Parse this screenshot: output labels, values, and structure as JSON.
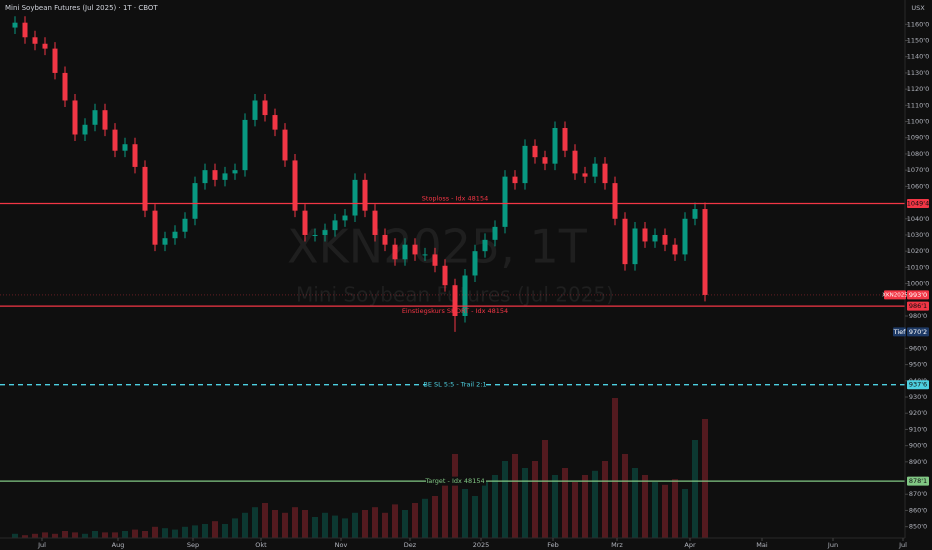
{
  "chart_data": {
    "type": "candlestick",
    "title": "Mini Soybean Futures (Jul 2025) · 1T · CBOT",
    "currency": "USX",
    "watermark": {
      "symbol": "XKN2025, 1T",
      "name": "Mini Soybean Futures (Jul 2025)"
    },
    "up_color": "#089981",
    "down_color": "#f23645",
    "xlim": [
      -1.5,
      89
    ],
    "xticks": [
      {
        "value": 2.7,
        "label": "Jul"
      },
      {
        "value": 10.3,
        "label": "Aug"
      },
      {
        "value": 17.8,
        "label": "Sep"
      },
      {
        "value": 24.6,
        "label": "Okt"
      },
      {
        "value": 32.6,
        "label": "Nov"
      },
      {
        "value": 39.5,
        "label": "Dez"
      },
      {
        "value": 46.6,
        "label": "2025"
      },
      {
        "value": 53.8,
        "label": "Feb"
      },
      {
        "value": 60.2,
        "label": "Mrz"
      },
      {
        "value": 67.5,
        "label": "Apr"
      },
      {
        "value": 74.7,
        "label": "Mai"
      },
      {
        "value": 81.8,
        "label": "Jun"
      },
      {
        "value": 88.8,
        "label": "Jul"
      }
    ],
    "ylim": [
      843,
      1175
    ],
    "yticks": [
      {
        "value": 1160,
        "label": "1160'0"
      },
      {
        "value": 1150,
        "label": "1150'0"
      },
      {
        "value": 1140,
        "label": "1140'0"
      },
      {
        "value": 1130,
        "label": "1130'0"
      },
      {
        "value": 1120,
        "label": "1120'0"
      },
      {
        "value": 1110,
        "label": "1110'0"
      },
      {
        "value": 1100,
        "label": "1100'0"
      },
      {
        "value": 1090,
        "label": "1090'0"
      },
      {
        "value": 1080,
        "label": "1080'0"
      },
      {
        "value": 1070,
        "label": "1070'0"
      },
      {
        "value": 1060,
        "label": "1060'0"
      },
      {
        "value": 1040,
        "label": "1040'0"
      },
      {
        "value": 1030,
        "label": "1030'0"
      },
      {
        "value": 1020,
        "label": "1020'0"
      },
      {
        "value": 1010,
        "label": "1010'0"
      },
      {
        "value": 1000,
        "label": "1000'0"
      },
      {
        "value": 980,
        "label": "980'0"
      },
      {
        "value": 960,
        "label": "960'0"
      },
      {
        "value": 950,
        "label": "950'0"
      },
      {
        "value": 940,
        "label": "940'0"
      },
      {
        "value": 930,
        "label": "930'0"
      },
      {
        "value": 920,
        "label": "920'0"
      },
      {
        "value": 910,
        "label": "910'0"
      },
      {
        "value": 900,
        "label": "900'0"
      },
      {
        "value": 890,
        "label": "890'0"
      },
      {
        "value": 870,
        "label": "870'0"
      },
      {
        "value": 860,
        "label": "860'0"
      },
      {
        "value": 850,
        "label": "850'0"
      }
    ],
    "candles": {
      "open": [
        1158,
        1161,
        1152,
        1148,
        1145,
        1130,
        1113,
        1092,
        1098,
        1107,
        1095,
        1082,
        1086,
        1072,
        1045,
        1024,
        1028,
        1032,
        1040,
        1062,
        1070,
        1064,
        1068,
        1070,
        1101,
        1113,
        1104,
        1095,
        1076,
        1045,
        1030,
        1030,
        1033,
        1039,
        1042,
        1064,
        1045,
        1030,
        1024,
        1015,
        1024,
        1018,
        1018,
        1011,
        999,
        980,
        1005,
        1020,
        1027,
        1035,
        1066,
        1062,
        1085,
        1078,
        1074,
        1096,
        1082,
        1068,
        1066,
        1074,
        1062,
        1040,
        1012,
        1034,
        1026,
        1030,
        1024,
        1018,
        1040,
        1046
      ],
      "high": [
        1165,
        1165,
        1156,
        1152,
        1149,
        1134,
        1117,
        1102,
        1111,
        1111,
        1099,
        1090,
        1090,
        1076,
        1049,
        1032,
        1036,
        1044,
        1066,
        1074,
        1074,
        1072,
        1074,
        1105,
        1117,
        1117,
        1108,
        1099,
        1080,
        1049,
        1034,
        1037,
        1043,
        1046,
        1068,
        1068,
        1049,
        1034,
        1028,
        1028,
        1028,
        1022,
        1022,
        1015,
        1003,
        1009,
        1024,
        1031,
        1039,
        1070,
        1070,
        1089,
        1089,
        1082,
        1100,
        1100,
        1086,
        1072,
        1078,
        1078,
        1066,
        1044,
        1038,
        1038,
        1034,
        1034,
        1028,
        1044,
        1050,
        1050
      ],
      "low": [
        1154,
        1148,
        1144,
        1141,
        1126,
        1109,
        1088,
        1088,
        1094,
        1091,
        1078,
        1078,
        1068,
        1041,
        1020,
        1020,
        1024,
        1028,
        1036,
        1058,
        1060,
        1060,
        1064,
        1066,
        1097,
        1100,
        1091,
        1072,
        1041,
        1026,
        1026,
        1026,
        1029,
        1035,
        1038,
        1041,
        1026,
        1020,
        1011,
        1011,
        1014,
        1014,
        1007,
        995,
        970.2,
        976,
        1001,
        1016,
        1023,
        1031,
        1058,
        1058,
        1074,
        1070,
        1070,
        1078,
        1064,
        1062,
        1062,
        1058,
        1036,
        1008,
        1008,
        1022,
        1022,
        1020,
        1014,
        1014,
        1036,
        989
      ],
      "close": [
        1161,
        1152,
        1148,
        1145,
        1130,
        1113,
        1092,
        1098,
        1107,
        1095,
        1082,
        1086,
        1072,
        1045,
        1024,
        1028,
        1032,
        1040,
        1062,
        1070,
        1064,
        1068,
        1070,
        1101,
        1113,
        1104,
        1095,
        1076,
        1045,
        1030,
        1030,
        1033,
        1039,
        1042,
        1064,
        1045,
        1030,
        1024,
        1015,
        1024,
        1018,
        1018,
        1011,
        999,
        980,
        1005,
        1020,
        1027,
        1035,
        1066,
        1062,
        1085,
        1078,
        1074,
        1096,
        1082,
        1068,
        1066,
        1074,
        1062,
        1040,
        1012,
        1034,
        1026,
        1030,
        1024,
        1018,
        1040,
        1046,
        993
      ],
      "volume": [
        3,
        2,
        3,
        4,
        3,
        5,
        4,
        3,
        5,
        4,
        4,
        5,
        6,
        5,
        8,
        7,
        6,
        8,
        9,
        10,
        12,
        10,
        14,
        18,
        22,
        25,
        20,
        18,
        22,
        20,
        15,
        18,
        16,
        14,
        18,
        20,
        22,
        18,
        24,
        20,
        25,
        28,
        30,
        40,
        60,
        35,
        30,
        40,
        45,
        55,
        60,
        50,
        55,
        70,
        45,
        50,
        40,
        45,
        48,
        55,
        100,
        60,
        50,
        45,
        40,
        38,
        42,
        35,
        70,
        85
      ]
    },
    "levels": [
      {
        "label": "Stoploss - Idx 48154",
        "value": 1049.4,
        "value_label": "1049'4",
        "color": "#f23645",
        "style": "solid",
        "label_side": "above"
      },
      {
        "label": "Einstiegskurs SHORT - Idx 48154",
        "value": 986.1,
        "value_label": "986'1",
        "color": "#f23645",
        "style": "solid",
        "label_side": "below"
      },
      {
        "label": "BE SL 5:5 - Trail 2:1",
        "value": 937.6,
        "value_label": "937'6",
        "color": "#4dd0e1",
        "style": "dashed",
        "label_side": "on"
      },
      {
        "label": "Target - Idx 48154",
        "value": 878.1,
        "value_label": "878'1",
        "color": "#81c784",
        "style": "solid",
        "label_side": "on"
      }
    ],
    "last_price": {
      "symbol": "XKN2025",
      "value": 993.0,
      "value_label": "993'0"
    },
    "low_marker": {
      "label": "Tief",
      "value": 970.2,
      "value_label": "970'2"
    }
  }
}
